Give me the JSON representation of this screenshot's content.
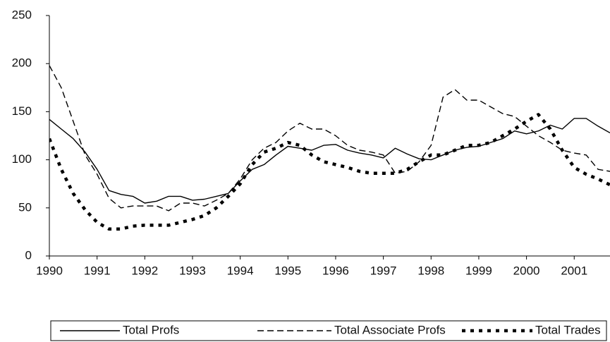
{
  "chart_data": {
    "type": "line",
    "x": [
      1990,
      1990.25,
      1990.5,
      1990.75,
      1991,
      1991.25,
      1991.5,
      1991.75,
      1992,
      1992.25,
      1992.5,
      1992.75,
      1993,
      1993.25,
      1993.5,
      1993.75,
      1994,
      1994.25,
      1994.5,
      1994.75,
      1995,
      1995.25,
      1995.5,
      1995.75,
      1996,
      1996.25,
      1996.5,
      1996.75,
      1997,
      1997.25,
      1997.5,
      1997.75,
      1998,
      1998.25,
      1998.5,
      1998.75,
      1999,
      1999.25,
      1999.5,
      1999.75,
      2000,
      2000.25,
      2000.5,
      2000.75,
      2001,
      2001.25,
      2001.5,
      2001.75
    ],
    "series": [
      {
        "name": "Total Profs",
        "color": "#000000",
        "style": "solid",
        "values": [
          142,
          132,
          122,
          108,
          90,
          68,
          64,
          62,
          55,
          57,
          62,
          62,
          58,
          59,
          62,
          65,
          78,
          90,
          95,
          105,
          114,
          112,
          110,
          115,
          116,
          110,
          107,
          105,
          102,
          112,
          106,
          101,
          100,
          105,
          110,
          113,
          114,
          118,
          122,
          130,
          127,
          130,
          136,
          132,
          143,
          143,
          135,
          128
        ]
      },
      {
        "name": "Total Associate Profs",
        "color": "#000000",
        "style": "dashed",
        "values": [
          198,
          175,
          140,
          105,
          85,
          60,
          50,
          52,
          52,
          52,
          47,
          55,
          55,
          52,
          58,
          65,
          80,
          100,
          112,
          118,
          130,
          138,
          132,
          132,
          125,
          115,
          110,
          108,
          105,
          86,
          88,
          98,
          115,
          165,
          173,
          162,
          162,
          155,
          148,
          145,
          135,
          125,
          118,
          110,
          107,
          105,
          90,
          88
        ]
      },
      {
        "name": "Total Trades",
        "color": "#000000",
        "style": "dotted",
        "values": [
          122,
          90,
          65,
          48,
          35,
          28,
          28,
          31,
          32,
          32,
          32,
          35,
          38,
          42,
          50,
          62,
          75,
          95,
          108,
          112,
          118,
          115,
          105,
          98,
          95,
          92,
          88,
          86,
          86,
          86,
          90,
          98,
          105,
          105,
          110,
          115,
          115,
          118,
          125,
          132,
          140,
          147,
          132,
          110,
          92,
          85,
          80,
          74
        ]
      }
    ],
    "xlim": [
      1990,
      2001.75
    ],
    "xticks": [
      1990,
      1991,
      1992,
      1993,
      1994,
      1995,
      1996,
      1997,
      1998,
      1999,
      2000,
      2001
    ],
    "ylim": [
      0,
      250
    ],
    "yticks": [
      0,
      50,
      100,
      150,
      200,
      250
    ],
    "grid": false,
    "legend": "bottom"
  }
}
